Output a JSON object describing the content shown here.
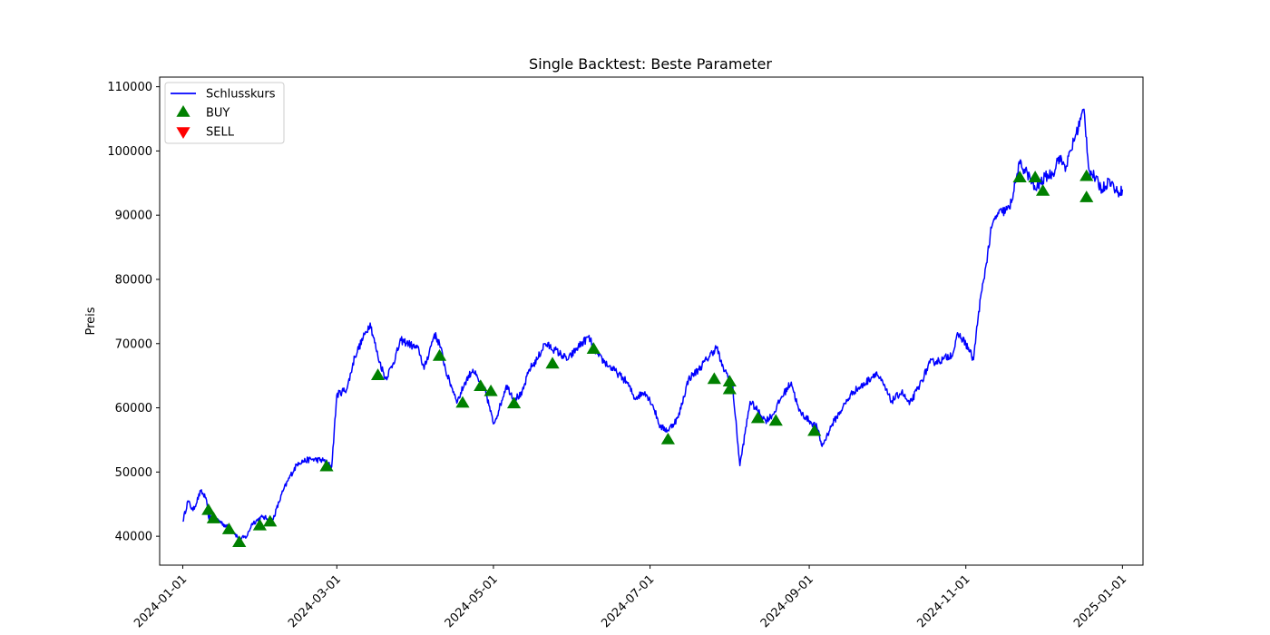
{
  "chart_data": {
    "type": "line",
    "title": "Single Backtest: Beste Parameter",
    "xlabel": "",
    "ylabel": "Preis",
    "x_axis_type": "date",
    "xlim": [
      "2023-12-23",
      "2025-01-09"
    ],
    "ylim": [
      35500,
      111500
    ],
    "x_ticks": [
      "2024-01-01",
      "2024-03-01",
      "2024-05-01",
      "2024-07-01",
      "2024-09-01",
      "2024-11-01",
      "2025-01-01"
    ],
    "y_ticks": [
      40000,
      50000,
      60000,
      70000,
      80000,
      90000,
      100000,
      110000
    ],
    "y_tick_labels": [
      "40000",
      "50000",
      "60000",
      "70000",
      "80000",
      "90000",
      "100000",
      "110000"
    ],
    "grid": false,
    "legend_position": "top-left",
    "series": [
      {
        "name": "Schlusskurs",
        "color": "#0000ff",
        "x": [
          "2024-01-01",
          "2024-01-03",
          "2024-01-05",
          "2024-01-08",
          "2024-01-10",
          "2024-01-11",
          "2024-01-13",
          "2024-01-15",
          "2024-01-18",
          "2024-01-20",
          "2024-01-23",
          "2024-01-26",
          "2024-01-28",
          "2024-02-01",
          "2024-02-05",
          "2024-02-09",
          "2024-02-12",
          "2024-02-15",
          "2024-02-20",
          "2024-02-25",
          "2024-02-28",
          "2024-03-01",
          "2024-03-05",
          "2024-03-08",
          "2024-03-12",
          "2024-03-14",
          "2024-03-17",
          "2024-03-20",
          "2024-03-23",
          "2024-03-26",
          "2024-03-29",
          "2024-04-02",
          "2024-04-04",
          "2024-04-08",
          "2024-04-10",
          "2024-04-13",
          "2024-04-15",
          "2024-04-17",
          "2024-04-20",
          "2024-04-23",
          "2024-04-26",
          "2024-04-28",
          "2024-05-01",
          "2024-05-03",
          "2024-05-06",
          "2024-05-09",
          "2024-05-12",
          "2024-05-15",
          "2024-05-18",
          "2024-05-21",
          "2024-05-25",
          "2024-05-30",
          "2024-06-03",
          "2024-06-07",
          "2024-06-11",
          "2024-06-15",
          "2024-06-18",
          "2024-06-22",
          "2024-06-25",
          "2024-06-29",
          "2024-07-02",
          "2024-07-05",
          "2024-07-08",
          "2024-07-12",
          "2024-07-16",
          "2024-07-20",
          "2024-07-23",
          "2024-07-27",
          "2024-07-29",
          "2024-08-02",
          "2024-08-05",
          "2024-08-07",
          "2024-08-09",
          "2024-08-12",
          "2024-08-15",
          "2024-08-18",
          "2024-08-21",
          "2024-08-25",
          "2024-08-28",
          "2024-09-01",
          "2024-09-04",
          "2024-09-06",
          "2024-09-10",
          "2024-09-14",
          "2024-09-18",
          "2024-09-22",
          "2024-09-27",
          "2024-09-30",
          "2024-10-03",
          "2024-10-07",
          "2024-10-10",
          "2024-10-14",
          "2024-10-18",
          "2024-10-23",
          "2024-10-27",
          "2024-10-29",
          "2024-11-01",
          "2024-11-04",
          "2024-11-06",
          "2024-11-08",
          "2024-11-11",
          "2024-11-13",
          "2024-11-15",
          "2024-11-18",
          "2024-11-22",
          "2024-11-25",
          "2024-11-28",
          "2024-12-02",
          "2024-12-05",
          "2024-12-07",
          "2024-12-10",
          "2024-12-13",
          "2024-12-17",
          "2024-12-19",
          "2024-12-21",
          "2024-12-24",
          "2024-12-27",
          "2024-12-30",
          "2025-01-01"
        ],
        "y": [
          42300,
          45500,
          44000,
          47000,
          46000,
          43000,
          42800,
          42500,
          41500,
          41200,
          39500,
          40000,
          42000,
          43000,
          42500,
          47000,
          49500,
          51500,
          52000,
          51800,
          50800,
          62000,
          63000,
          68000,
          71500,
          73200,
          68000,
          64500,
          67000,
          70500,
          70000,
          69000,
          66000,
          71500,
          70000,
          65000,
          63000,
          61000,
          64000,
          66000,
          63500,
          62500,
          57500,
          59500,
          63500,
          61500,
          62000,
          66000,
          67500,
          70000,
          69000,
          67500,
          69500,
          71000,
          68000,
          66500,
          65500,
          64000,
          61500,
          62500,
          60500,
          57000,
          56500,
          58500,
          64500,
          66000,
          67500,
          69500,
          66500,
          64000,
          51000,
          56000,
          61000,
          59500,
          58000,
          59000,
          61500,
          64000,
          59500,
          58000,
          57000,
          54000,
          57500,
          60000,
          62500,
          63500,
          65500,
          63500,
          61000,
          62500,
          60500,
          63500,
          67000,
          67500,
          68500,
          71500,
          70000,
          67500,
          75000,
          80000,
          88000,
          90000,
          90500,
          91000,
          98000,
          96500,
          94000,
          96000,
          96500,
          99000,
          97500,
          101500,
          106500,
          97000,
          96000,
          94000,
          95500,
          93500,
          94000
        ]
      }
    ],
    "markers": [
      {
        "name": "BUY",
        "shape": "triangle-up",
        "color": "#008000",
        "x": [
          "2024-01-11",
          "2024-01-13",
          "2024-01-19",
          "2024-01-23",
          "2024-01-31",
          "2024-02-04",
          "2024-02-26",
          "2024-03-17",
          "2024-04-10",
          "2024-04-19",
          "2024-04-26",
          "2024-04-30",
          "2024-05-09",
          "2024-05-24",
          "2024-06-09",
          "2024-07-08",
          "2024-07-26",
          "2024-08-01",
          "2024-08-01",
          "2024-08-12",
          "2024-08-19",
          "2024-09-03",
          "2024-11-22",
          "2024-11-28",
          "2024-12-01",
          "2024-12-18",
          "2024-12-18"
        ],
        "y": [
          44000,
          42700,
          41000,
          39000,
          41600,
          42200,
          50800,
          65000,
          68000,
          60700,
          63300,
          62500,
          60600,
          66800,
          69100,
          55000,
          64400,
          64000,
          62800,
          58300,
          57900,
          56300,
          95800,
          95800,
          93700,
          96000,
          92700
        ]
      },
      {
        "name": "SELL",
        "shape": "triangle-down",
        "color": "#ff0000",
        "x": [],
        "y": []
      }
    ]
  }
}
